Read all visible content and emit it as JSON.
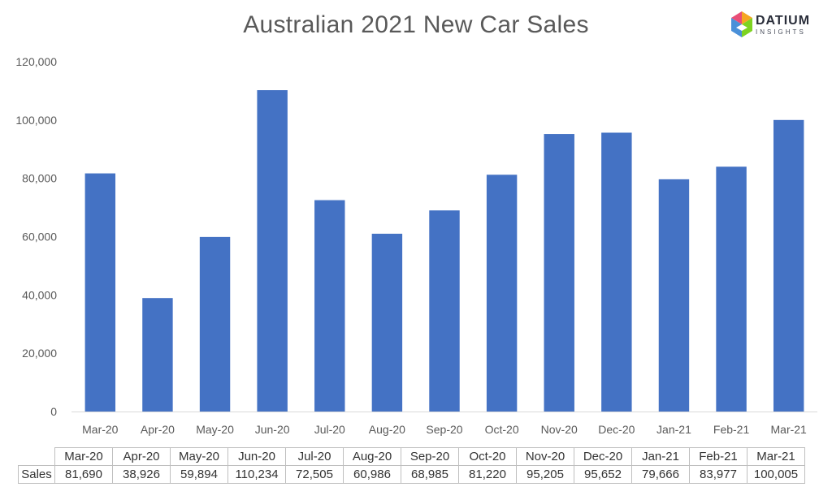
{
  "chart_data": {
    "type": "bar",
    "title": "Australian 2021 New Car Sales",
    "categories": [
      "Mar-20",
      "Apr-20",
      "May-20",
      "Jun-20",
      "Jul-20",
      "Aug-20",
      "Sep-20",
      "Oct-20",
      "Nov-20",
      "Dec-20",
      "Jan-21",
      "Feb-21",
      "Mar-21"
    ],
    "series": [
      {
        "name": "Sales",
        "values": [
          81690,
          38926,
          59894,
          110234,
          72505,
          60986,
          68985,
          81220,
          95205,
          95652,
          79666,
          83977,
          100005
        ],
        "color": "#4472c4"
      }
    ],
    "ylim": [
      0,
      120000
    ],
    "yticks": [
      "0",
      "20,000",
      "40,000",
      "60,000",
      "80,000",
      "100,000",
      "120,000"
    ],
    "grid": false,
    "legend": "none"
  },
  "logo": {
    "name": "DATIUM",
    "sub": "INSIGHTS"
  },
  "table": {
    "row_label": "Sales",
    "values": [
      "81,690",
      "38,926",
      "59,894",
      "110,234",
      "72,505",
      "60,986",
      "68,985",
      "81,220",
      "95,205",
      "95,652",
      "79,666",
      "83,977",
      "100,005"
    ]
  }
}
